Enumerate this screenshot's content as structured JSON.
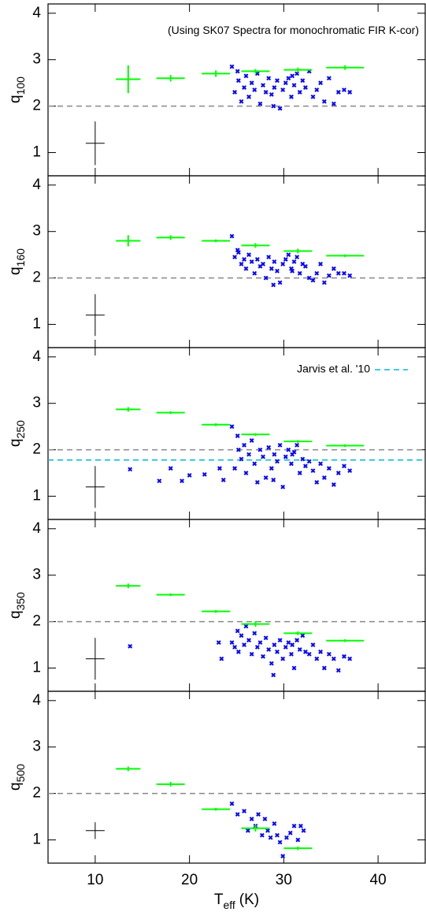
{
  "chart_data": [
    {
      "type": "scatter",
      "ylabel": "q",
      "ylabel_subscript": "100",
      "annotation": "(Using SK07 Spectra for monochromatic FIR K-cor)",
      "xlim": [
        5,
        45
      ],
      "xticks": [
        10,
        20,
        30,
        40
      ],
      "ylim": [
        0.5,
        4.2
      ],
      "yticks": [
        1,
        2,
        3,
        4
      ],
      "points": {
        "color": "#0000ff",
        "x": [
          24.5,
          24.8,
          25.2,
          25.5,
          25.8,
          26.0,
          26.3,
          26.6,
          26.9,
          27.2,
          27.5,
          27.8,
          28.1,
          28.4,
          28.7,
          29.0,
          29.3,
          29.6,
          29.9,
          30.2,
          30.5,
          30.8,
          31.1,
          31.4,
          31.7,
          32.0,
          32.3,
          32.7,
          33.1,
          33.5,
          33.9,
          34.3,
          34.8,
          35.3,
          35.8,
          36.4,
          37.0,
          25.1,
          28.9,
          30.9
        ],
        "y": [
          2.85,
          2.3,
          2.55,
          2.1,
          2.4,
          2.65,
          2.2,
          2.5,
          2.35,
          2.7,
          2.05,
          2.45,
          2.3,
          2.6,
          2.25,
          2.4,
          2.55,
          1.95,
          2.35,
          2.5,
          2.6,
          2.2,
          2.45,
          2.7,
          2.3,
          2.55,
          2.4,
          2.75,
          2.2,
          2.35,
          2.5,
          2.1,
          2.6,
          2.05,
          2.3,
          2.35,
          2.3,
          2.75,
          2.0,
          2.65
        ]
      },
      "binned": {
        "color": "#00ff00",
        "x": [
          13.5,
          18,
          22.8,
          27,
          31.5,
          36.5
        ],
        "xerr": [
          1.3,
          1.5,
          1.5,
          1.5,
          1.5,
          2
        ],
        "y": [
          2.58,
          2.6,
          2.7,
          2.75,
          2.78,
          2.83
        ],
        "yerr": [
          0.3,
          0.07,
          0.07,
          0.05,
          0.05,
          0.05
        ]
      },
      "typical_error": {
        "color": "#000000",
        "x": 10,
        "xerr": 1,
        "y": 1.2,
        "yerr": 0.47
      },
      "hlines": [
        {
          "y": 2,
          "color": "#888888"
        }
      ]
    },
    {
      "type": "scatter",
      "ylabel": "q",
      "ylabel_subscript": "160",
      "xlim": [
        5,
        45
      ],
      "xticks": [
        10,
        20,
        30,
        40
      ],
      "ylim": [
        0.5,
        4.2
      ],
      "yticks": [
        1,
        2,
        3,
        4
      ],
      "points": {
        "color": "#0000ff",
        "x": [
          24.5,
          24.8,
          25.2,
          25.5,
          25.8,
          26.0,
          26.3,
          26.6,
          26.9,
          27.2,
          27.5,
          27.8,
          28.1,
          28.4,
          28.7,
          29.0,
          29.3,
          29.6,
          29.9,
          30.2,
          30.5,
          30.8,
          31.1,
          31.4,
          31.7,
          32.0,
          32.3,
          32.7,
          33.1,
          33.5,
          33.9,
          34.3,
          34.8,
          35.3,
          35.8,
          36.4,
          37.0,
          25.1,
          28.9,
          30.9
        ],
        "y": [
          2.9,
          2.45,
          2.55,
          2.3,
          2.4,
          2.2,
          2.5,
          2.35,
          2.1,
          2.4,
          2.25,
          2.3,
          2.0,
          2.45,
          2.2,
          2.35,
          2.15,
          1.9,
          2.3,
          2.4,
          2.5,
          2.2,
          2.35,
          2.45,
          2.1,
          2.3,
          2.25,
          2.0,
          1.95,
          2.1,
          2.3,
          1.9,
          2.05,
          2.2,
          2.1,
          2.1,
          2.05,
          2.6,
          1.85,
          2.15
        ]
      },
      "binned": {
        "color": "#00ff00",
        "x": [
          13.5,
          18,
          22.8,
          27,
          31.5,
          36.5
        ],
        "xerr": [
          1.3,
          1.5,
          1.5,
          1.5,
          1.5,
          2
        ],
        "y": [
          2.8,
          2.87,
          2.8,
          2.7,
          2.58,
          2.48
        ],
        "yerr": [
          0.12,
          0.05,
          0.03,
          0.05,
          0.05,
          0.03
        ]
      },
      "typical_error": {
        "color": "#000000",
        "x": 10,
        "xerr": 1,
        "y": 1.2,
        "yerr": 0.45
      },
      "hlines": [
        {
          "y": 2,
          "color": "#888888"
        }
      ]
    },
    {
      "type": "scatter",
      "ylabel": "q",
      "ylabel_subscript": "250",
      "xlim": [
        5,
        45
      ],
      "xticks": [
        10,
        20,
        30,
        40
      ],
      "ylim": [
        0.5,
        4.2
      ],
      "yticks": [
        1,
        2,
        3,
        4
      ],
      "points": {
        "color": "#0000ff",
        "x": [
          24.5,
          24.8,
          25.2,
          25.5,
          25.8,
          26.0,
          26.3,
          26.6,
          26.9,
          27.2,
          27.5,
          27.8,
          28.1,
          28.4,
          28.7,
          29.0,
          29.3,
          29.6,
          29.9,
          30.2,
          30.5,
          30.8,
          31.1,
          31.4,
          31.7,
          32.0,
          32.3,
          32.7,
          33.1,
          33.5,
          33.9,
          34.3,
          34.8,
          35.3,
          35.8,
          36.4,
          37.0,
          25.1,
          28.9,
          30.9,
          13.7,
          16.8,
          18.0,
          19.2,
          20.0,
          21.6,
          23.2,
          23.6
        ],
        "y": [
          2.5,
          1.6,
          2.0,
          1.8,
          2.1,
          1.5,
          1.9,
          2.2,
          1.7,
          1.3,
          2.0,
          1.85,
          1.4,
          2.05,
          1.6,
          1.9,
          1.75,
          2.1,
          1.2,
          1.85,
          2.0,
          1.7,
          1.95,
          2.1,
          1.5,
          1.8,
          1.65,
          1.75,
          1.55,
          1.3,
          1.7,
          1.4,
          1.6,
          1.25,
          1.5,
          1.65,
          1.55,
          2.3,
          1.35,
          1.9,
          1.58,
          1.33,
          1.6,
          1.33,
          1.45,
          1.47,
          1.6,
          1.35
        ]
      },
      "binned": {
        "color": "#00ff00",
        "x": [
          13.5,
          18,
          22.8,
          27,
          31.5,
          36.5
        ],
        "xerr": [
          1.3,
          1.5,
          1.5,
          1.5,
          1.5,
          2
        ],
        "y": [
          2.87,
          2.8,
          2.54,
          2.33,
          2.18,
          2.09
        ],
        "yerr": [
          0.05,
          0.03,
          0.03,
          0.03,
          0.03,
          0.03
        ]
      },
      "typical_error": {
        "color": "#000000",
        "x": 10,
        "xerr": 1,
        "y": 1.2,
        "yerr": 0.45
      },
      "hlines": [
        {
          "y": 2,
          "color": "#888888"
        },
        {
          "y": 1.78,
          "color": "#00bcd4",
          "label": "Jarvis et al. '10"
        }
      ]
    },
    {
      "type": "scatter",
      "ylabel": "q",
      "ylabel_subscript": "350",
      "xlim": [
        5,
        45
      ],
      "xticks": [
        10,
        20,
        30,
        40
      ],
      "ylim": [
        0.5,
        4.2
      ],
      "yticks": [
        1,
        2,
        3,
        4
      ],
      "points": {
        "color": "#0000ff",
        "x": [
          24.5,
          24.8,
          25.2,
          25.5,
          25.8,
          26.0,
          26.3,
          26.6,
          26.9,
          27.2,
          27.5,
          27.8,
          28.1,
          28.4,
          28.7,
          29.0,
          29.3,
          29.6,
          29.9,
          30.2,
          30.5,
          30.8,
          31.1,
          31.4,
          31.7,
          32.0,
          32.3,
          32.7,
          33.1,
          33.5,
          33.9,
          34.3,
          34.8,
          35.3,
          35.8,
          36.4,
          37.0,
          25.1,
          28.9,
          30.9,
          13.7,
          23.1,
          23.4
        ],
        "y": [
          1.55,
          1.45,
          1.35,
          1.7,
          1.5,
          1.9,
          1.6,
          1.3,
          1.75,
          1.45,
          1.55,
          1.25,
          1.65,
          1.4,
          1.1,
          1.5,
          1.35,
          1.6,
          1.2,
          1.45,
          1.55,
          1.3,
          1.0,
          1.6,
          1.4,
          1.7,
          1.35,
          1.3,
          1.5,
          1.2,
          1.35,
          1.0,
          1.3,
          1.2,
          0.95,
          1.25,
          1.2,
          1.8,
          0.85,
          1.5,
          1.47,
          1.55,
          1.2
        ]
      },
      "binned": {
        "color": "#00ff00",
        "x": [
          13.5,
          18,
          22.8,
          27,
          31.5,
          36.5
        ],
        "xerr": [
          1.3,
          1.5,
          1.5,
          1.5,
          1.5,
          2
        ],
        "y": [
          2.77,
          2.58,
          2.22,
          1.95,
          1.75,
          1.59
        ],
        "yerr": [
          0.05,
          0.03,
          0.03,
          0.06,
          0.04,
          0.03
        ]
      },
      "typical_error": {
        "color": "#000000",
        "x": 10,
        "xerr": 1,
        "y": 1.2,
        "yerr": 0.45
      },
      "hlines": [
        {
          "y": 2,
          "color": "#888888"
        }
      ]
    },
    {
      "type": "scatter",
      "ylabel": "q",
      "ylabel_subscript": "500",
      "xlabel": "T",
      "xlabel_subscript": "eff",
      "xlabel_suffix": "(K)",
      "xlim": [
        5,
        45
      ],
      "xticks": [
        10,
        20,
        30,
        40
      ],
      "ylim": [
        0.5,
        4.2
      ],
      "yticks": [
        1,
        2,
        3,
        4
      ],
      "points": {
        "color": "#0000ff",
        "x": [
          24.5,
          25.1,
          25.8,
          26.2,
          26.6,
          27.0,
          27.3,
          27.7,
          28.0,
          28.3,
          28.6,
          29.0,
          29.3,
          29.6,
          29.9,
          30.3,
          30.7,
          31.1,
          31.5,
          31.8,
          32.1
        ],
        "y": [
          1.78,
          1.55,
          1.62,
          1.2,
          1.45,
          1.3,
          1.55,
          1.1,
          1.45,
          1.2,
          1.05,
          1.35,
          1.1,
          0.95,
          0.65,
          1.05,
          1.15,
          1.3,
          1.0,
          1.3,
          1.2
        ]
      },
      "binned": {
        "color": "#00ff00",
        "x": [
          13.5,
          18,
          22.8,
          27,
          31.5
        ],
        "xerr": [
          1.3,
          1.5,
          1.5,
          1.5,
          1.5
        ],
        "y": [
          2.53,
          2.2,
          1.66,
          1.25,
          0.82
        ],
        "yerr": [
          0.05,
          0.05,
          0.03,
          0.07,
          0.04
        ]
      },
      "typical_error": {
        "color": "#000000",
        "x": 10,
        "xerr": 1,
        "y": 1.2,
        "yerr": 0.18
      },
      "hlines": [
        {
          "y": 2,
          "color": "#888888"
        }
      ]
    }
  ]
}
